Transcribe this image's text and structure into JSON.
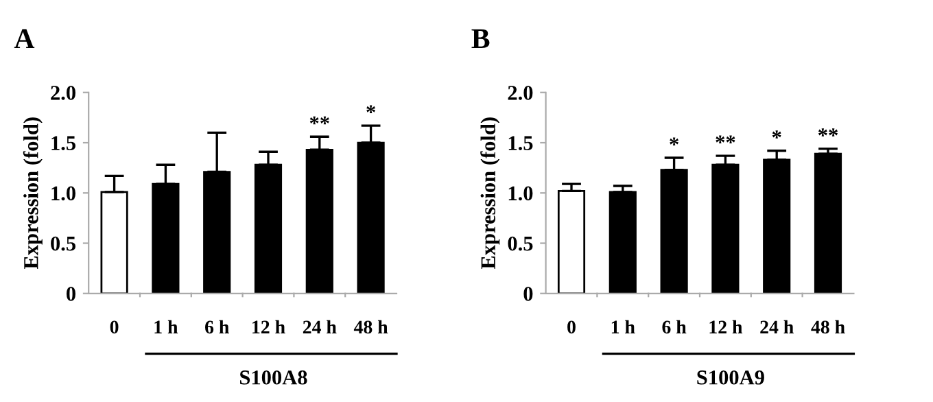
{
  "chart_data": [
    {
      "type": "bar",
      "title": "A",
      "ylabel": "Expression (fold)",
      "xlabel": "S100A8",
      "categories": [
        "0",
        "1 h",
        "6 h",
        "12 h",
        "24 h",
        "48 h"
      ],
      "values": [
        1.01,
        1.09,
        1.21,
        1.28,
        1.43,
        1.5
      ],
      "errors": [
        0.16,
        0.19,
        0.39,
        0.13,
        0.13,
        0.17
      ],
      "colors": [
        "#ffffff",
        "#000000",
        "#000000",
        "#000000",
        "#000000",
        "#000000"
      ],
      "ylim": [
        0,
        2
      ],
      "yticks": [
        0,
        {
          "value": 0.5,
          "label": "0.5"
        },
        {
          "value": 1,
          "label": "1.0"
        },
        {
          "value": 1.5,
          "label": "1.5"
        },
        {
          "value": 2,
          "label": "2.0"
        }
      ],
      "grid": false,
      "legend": false,
      "annotations": [
        {
          "text": "**",
          "x": "24 h",
          "y": 1.56
        },
        {
          "text": "*",
          "x": "48 h",
          "y": 1.67
        }
      ]
    },
    {
      "type": "bar",
      "title": "B",
      "ylabel": "Expression (fold)",
      "xlabel": "S100A9",
      "categories": [
        "0",
        "1 h",
        "6 h",
        "12 h",
        "24 h",
        "48 h"
      ],
      "values": [
        1.02,
        1.01,
        1.23,
        1.28,
        1.33,
        1.39
      ],
      "errors": [
        0.07,
        0.06,
        0.12,
        0.09,
        0.09,
        0.05
      ],
      "colors": [
        "#ffffff",
        "#000000",
        "#000000",
        "#000000",
        "#000000",
        "#000000"
      ],
      "ylim": [
        0,
        2
      ],
      "yticks": [
        0,
        {
          "value": 0.5,
          "label": "0.5"
        },
        {
          "value": 1,
          "label": "1.0"
        },
        {
          "value": 1.5,
          "label": "1.5"
        },
        {
          "value": 2,
          "label": "2.0"
        }
      ],
      "grid": false,
      "legend": false,
      "annotations": [
        {
          "text": "*",
          "x": "6 h",
          "y": 1.35
        },
        {
          "text": "**",
          "x": "12 h",
          "y": 1.37
        },
        {
          "text": "*",
          "x": "24 h",
          "y": 1.42
        },
        {
          "text": "**",
          "x": "48 h",
          "y": 1.44
        }
      ]
    }
  ]
}
